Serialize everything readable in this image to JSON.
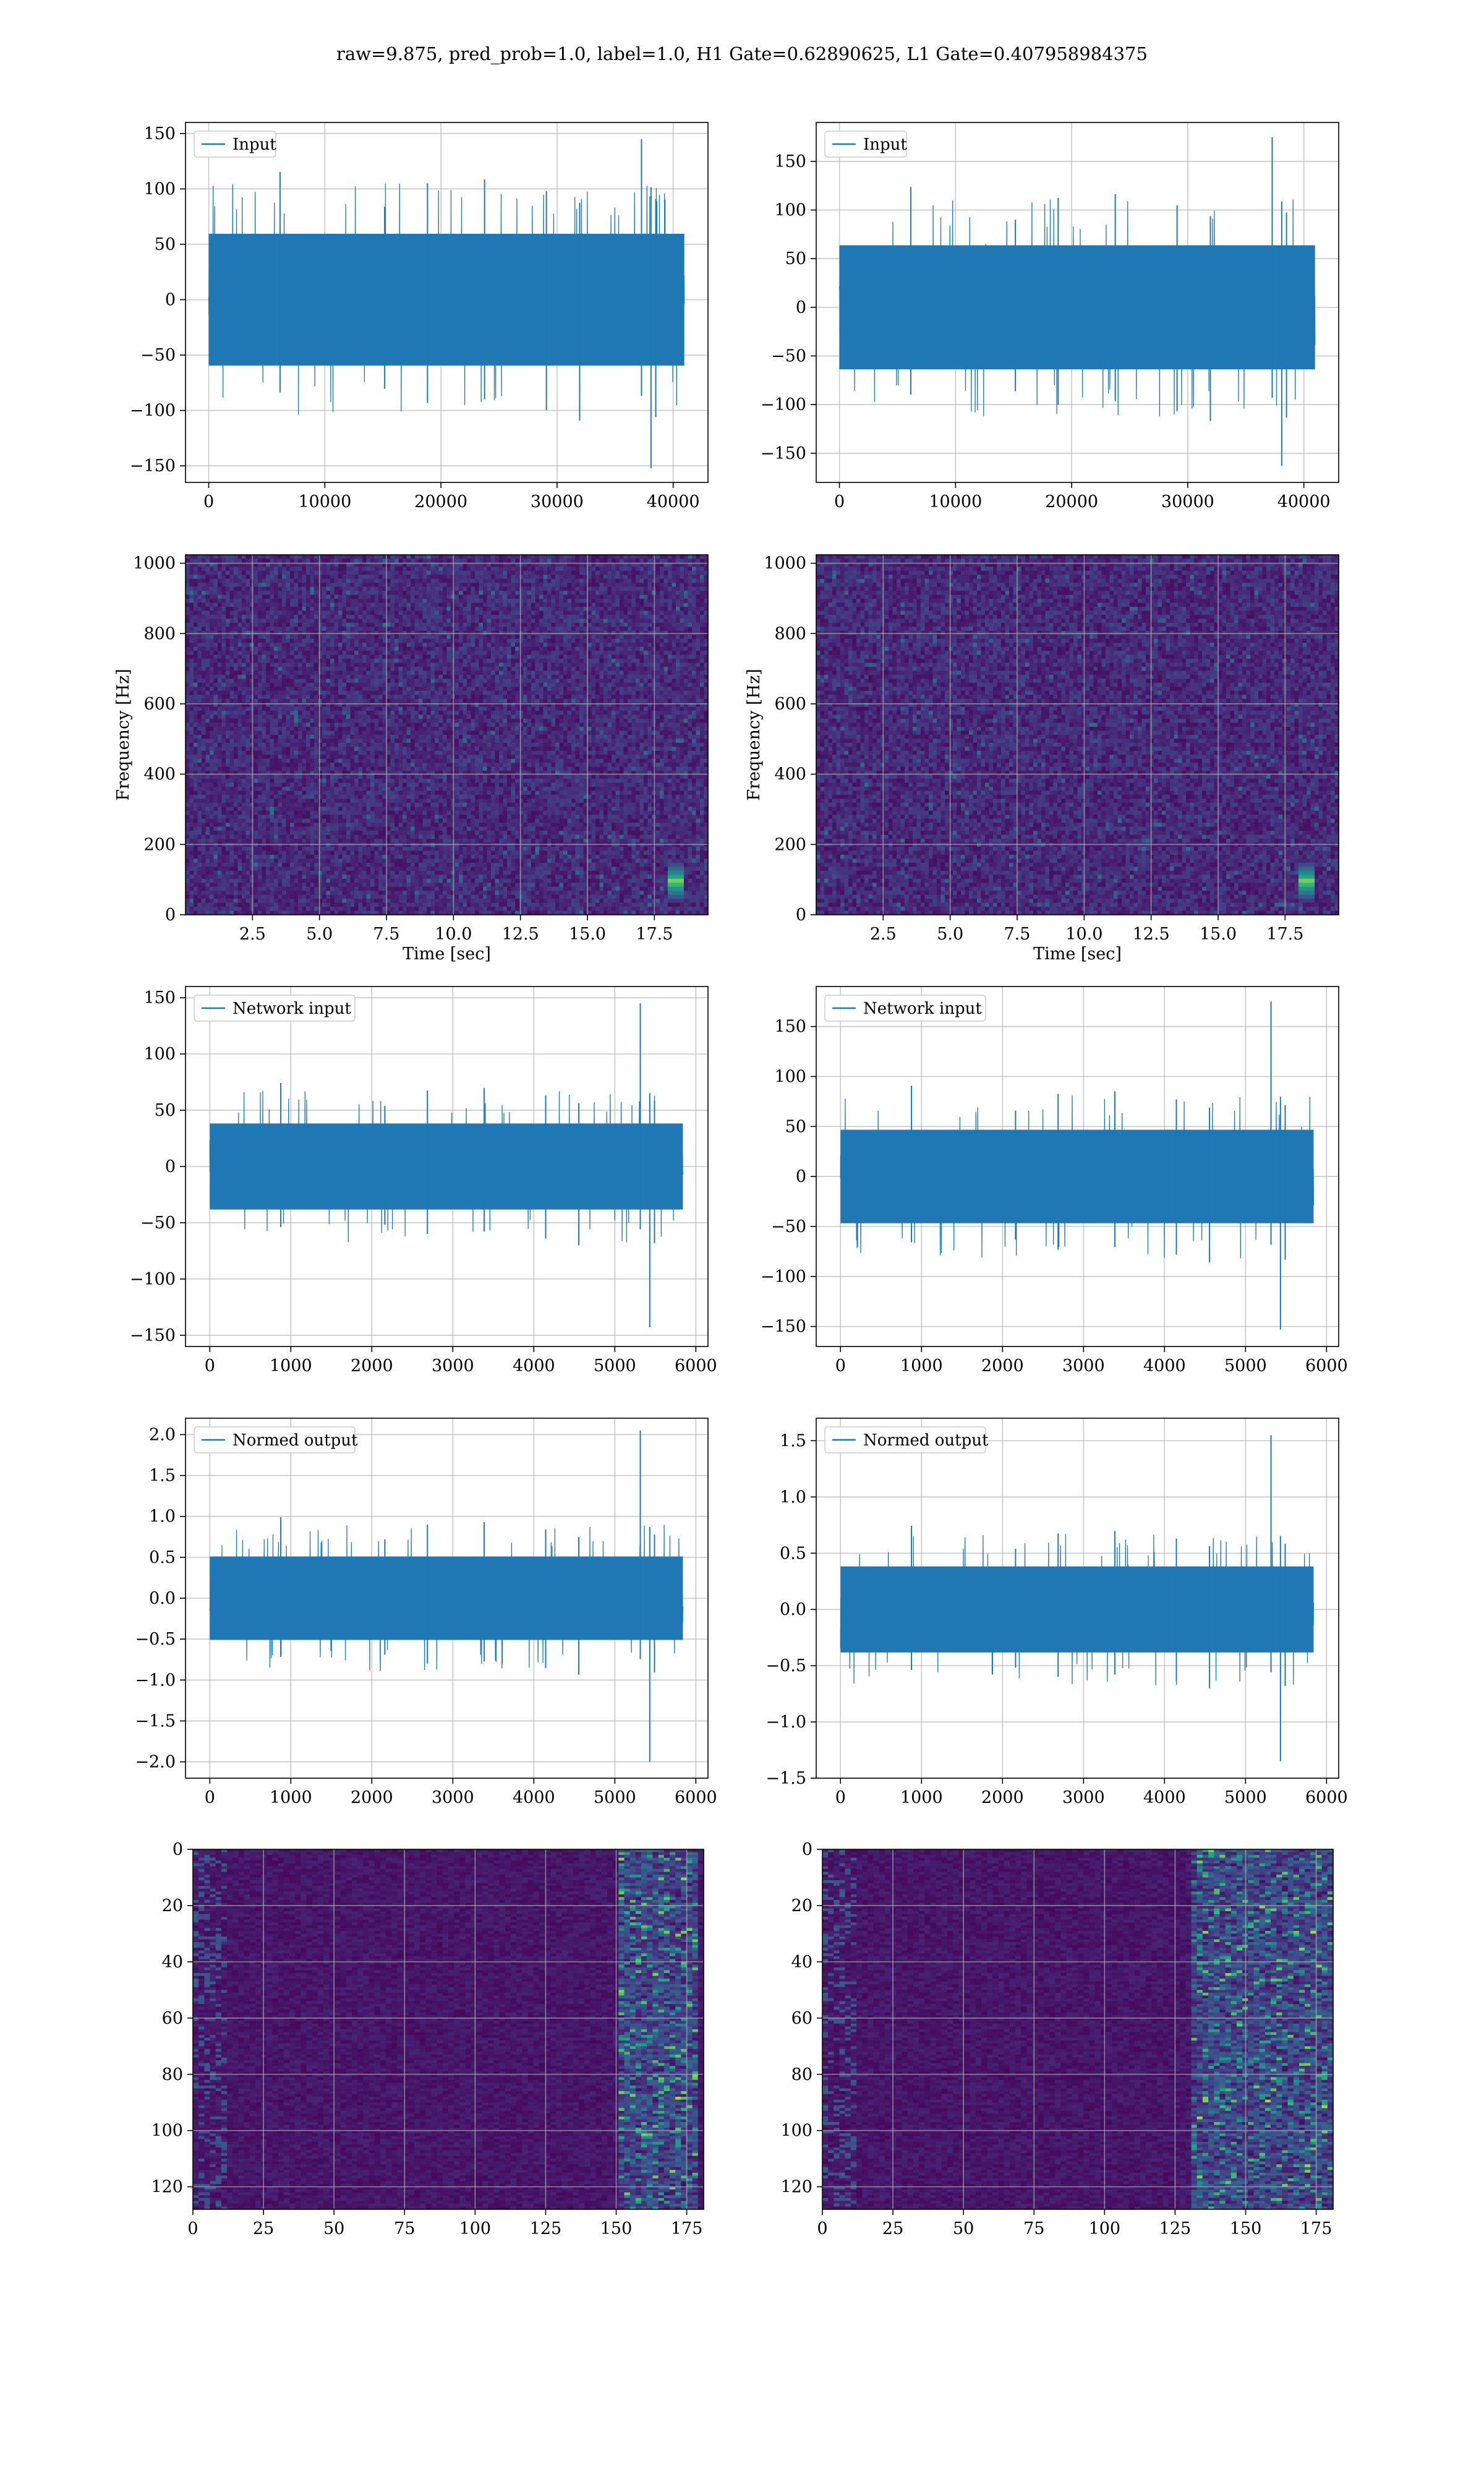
{
  "figure": {
    "title": "raw=9.875, pred_prob=1.0, label=1.0, H1 Gate=0.62890625, L1 Gate=0.407958984375"
  },
  "colors": {
    "line": "#1f77b4",
    "viridis_low": "#440154",
    "viridis_mid": "#21918c",
    "viridis_high": "#fde725",
    "grid": "#b0b0b0"
  },
  "chart_data": [
    {
      "id": "r1c1",
      "type": "line",
      "title": "",
      "xlabel": "",
      "ylabel": "",
      "legend": "top-left",
      "grid": true,
      "series": [
        {
          "name": "Input",
          "envelope": [
            -70,
            70
          ],
          "spikes_max": 145,
          "spikes_min": -152,
          "n_samples": 40960
        }
      ],
      "xlim": [
        -2000,
        43000
      ],
      "ylim": [
        -165,
        160
      ],
      "xticks": [
        0,
        10000,
        20000,
        30000,
        40000
      ],
      "yticks": [
        -150,
        -100,
        -50,
        0,
        50,
        100,
        150
      ]
    },
    {
      "id": "r1c2",
      "type": "line",
      "title": "",
      "xlabel": "",
      "ylabel": "",
      "legend": "top-left",
      "grid": true,
      "series": [
        {
          "name": "Input",
          "envelope": [
            -75,
            75
          ],
          "spikes_max": 175,
          "spikes_min": -163,
          "n_samples": 40960
        }
      ],
      "xlim": [
        -2000,
        43000
      ],
      "ylim": [
        -180,
        190
      ],
      "xticks": [
        0,
        10000,
        20000,
        30000,
        40000
      ],
      "yticks": [
        -150,
        -100,
        -50,
        0,
        50,
        100,
        150
      ]
    },
    {
      "id": "r2c1",
      "type": "heatmap",
      "title": "",
      "xlabel": "Time [sec]",
      "ylabel": "Frequency [Hz]",
      "grid": true,
      "colormap": "viridis",
      "xlim": [
        0,
        19.5
      ],
      "ylim": [
        0,
        1024
      ],
      "xticks": [
        2.5,
        5.0,
        7.5,
        10.0,
        12.5,
        15.0,
        17.5
      ],
      "yticks": [
        0,
        200,
        400,
        600,
        800,
        1000
      ],
      "bright_features": [
        {
          "t": 18.2,
          "f": 100,
          "note_intensity": 0.9
        }
      ]
    },
    {
      "id": "r2c2",
      "type": "heatmap",
      "title": "",
      "xlabel": "Time [sec]",
      "ylabel": "Frequency [Hz]",
      "grid": true,
      "colormap": "viridis",
      "xlim": [
        0,
        19.5
      ],
      "ylim": [
        0,
        1024
      ],
      "xticks": [
        2.5,
        5.0,
        7.5,
        10.0,
        12.5,
        15.0,
        17.5
      ],
      "yticks": [
        0,
        200,
        400,
        600,
        800,
        1000
      ],
      "bright_features": [
        {
          "t": 18.2,
          "f": 100,
          "note_intensity": 0.9
        }
      ]
    },
    {
      "id": "r3c1",
      "type": "line",
      "title": "",
      "xlabel": "",
      "ylabel": "",
      "legend": "top-left",
      "grid": true,
      "series": [
        {
          "name": "Network input",
          "envelope": [
            -45,
            45
          ],
          "spikes_max": 145,
          "spikes_min": -143,
          "n_samples": 5840
        }
      ],
      "xlim": [
        -300,
        6150
      ],
      "ylim": [
        -160,
        160
      ],
      "xticks": [
        0,
        1000,
        2000,
        3000,
        4000,
        5000,
        6000
      ],
      "yticks": [
        -150,
        -100,
        -50,
        0,
        50,
        100,
        150
      ]
    },
    {
      "id": "r3c2",
      "type": "line",
      "title": "",
      "xlabel": "",
      "ylabel": "",
      "legend": "top-left",
      "grid": true,
      "series": [
        {
          "name": "Network input",
          "envelope": [
            -55,
            55
          ],
          "spikes_max": 175,
          "spikes_min": -153,
          "n_samples": 5840
        }
      ],
      "xlim": [
        -300,
        6150
      ],
      "ylim": [
        -170,
        190
      ],
      "xticks": [
        0,
        1000,
        2000,
        3000,
        4000,
        5000,
        6000
      ],
      "yticks": [
        -150,
        -100,
        -50,
        0,
        50,
        100,
        150
      ]
    },
    {
      "id": "r4c1",
      "type": "line",
      "title": "",
      "xlabel": "",
      "ylabel": "",
      "legend": "top-left",
      "grid": true,
      "series": [
        {
          "name": "Normed output",
          "envelope": [
            -0.6,
            0.6
          ],
          "spikes_max": 2.05,
          "spikes_min": -2.0,
          "n_samples": 5840
        }
      ],
      "xlim": [
        -300,
        6150
      ],
      "ylim": [
        -2.2,
        2.2
      ],
      "xticks": [
        0,
        1000,
        2000,
        3000,
        4000,
        5000,
        6000
      ],
      "yticks": [
        -2.0,
        -1.5,
        -1.0,
        -0.5,
        0.0,
        0.5,
        1.0,
        1.5,
        2.0
      ]
    },
    {
      "id": "r4c2",
      "type": "line",
      "title": "",
      "xlabel": "",
      "ylabel": "",
      "legend": "top-left",
      "grid": true,
      "series": [
        {
          "name": "Normed output",
          "envelope": [
            -0.45,
            0.45
          ],
          "spikes_max": 1.55,
          "spikes_min": -1.35,
          "n_samples": 5840
        }
      ],
      "xlim": [
        -300,
        6150
      ],
      "ylim": [
        -1.5,
        1.7
      ],
      "xticks": [
        0,
        1000,
        2000,
        3000,
        4000,
        5000,
        6000
      ],
      "yticks": [
        -1.5,
        -1.0,
        -0.5,
        0.0,
        0.5,
        1.0,
        1.5
      ]
    },
    {
      "id": "r5c1",
      "type": "heatmap",
      "title": "",
      "xlabel": "",
      "ylabel": "",
      "grid": true,
      "colormap": "viridis",
      "y_inverted": true,
      "xlim": [
        0,
        181
      ],
      "ylim": [
        0,
        128
      ],
      "xticks": [
        0,
        25,
        50,
        75,
        100,
        125,
        150,
        175
      ],
      "yticks": [
        0,
        20,
        40,
        60,
        80,
        100,
        120
      ],
      "bright_band_x": [
        150,
        178
      ]
    },
    {
      "id": "r5c2",
      "type": "heatmap",
      "title": "",
      "xlabel": "",
      "ylabel": "",
      "grid": true,
      "colormap": "viridis",
      "y_inverted": true,
      "xlim": [
        0,
        181
      ],
      "ylim": [
        0,
        128
      ],
      "xticks": [
        0,
        25,
        50,
        75,
        100,
        125,
        150,
        175
      ],
      "yticks": [
        0,
        20,
        40,
        60,
        80,
        100,
        120
      ],
      "bright_band_x": [
        130,
        180
      ]
    }
  ]
}
